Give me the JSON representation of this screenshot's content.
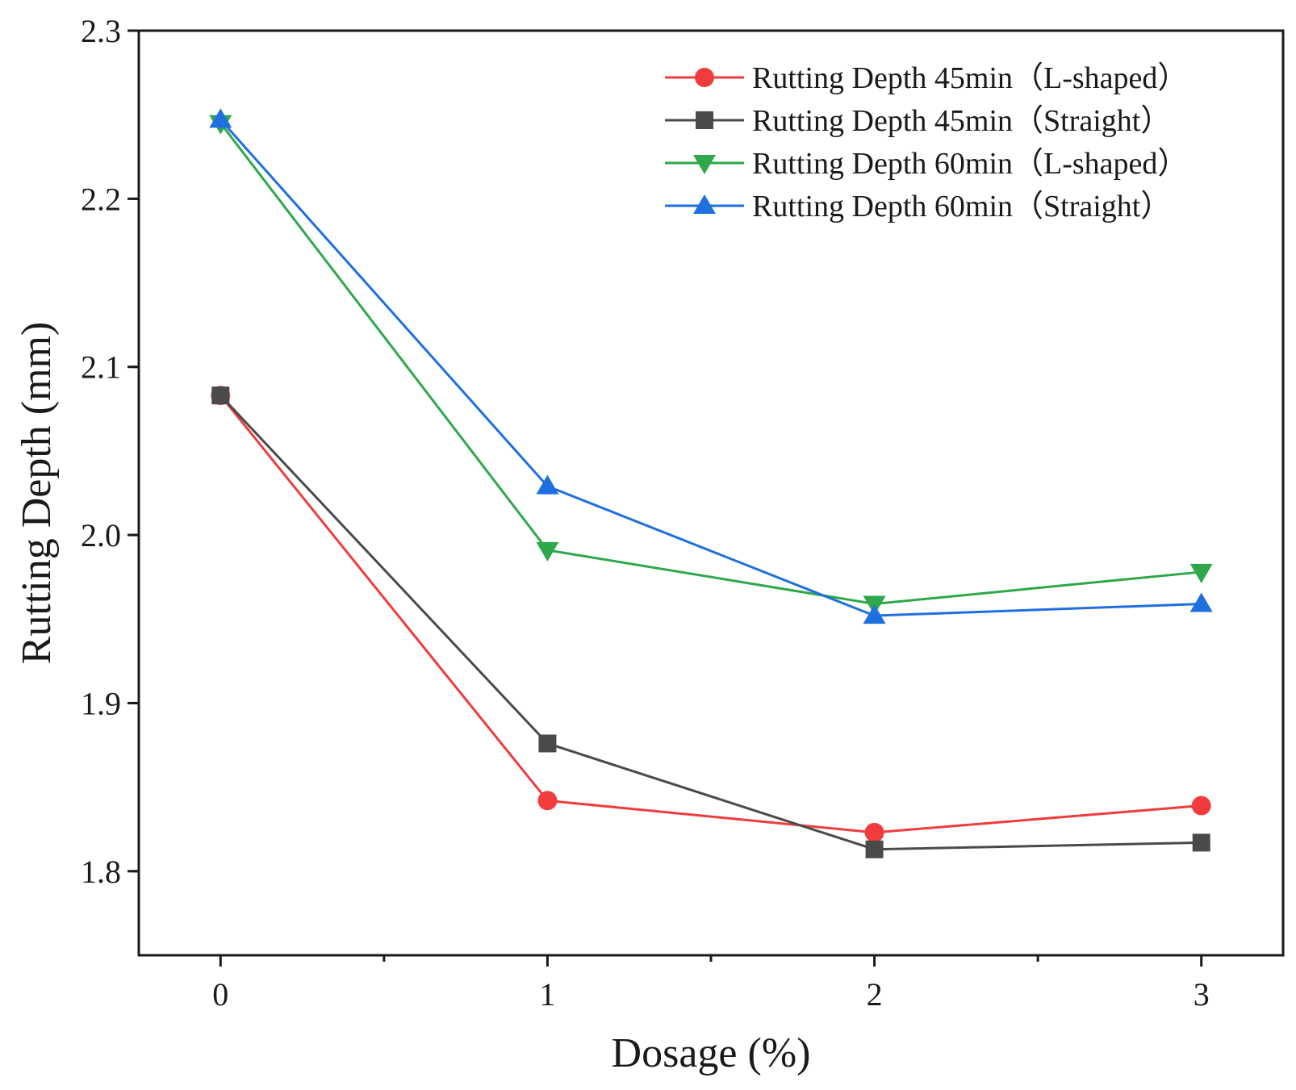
{
  "chart_data": {
    "type": "line",
    "title": "",
    "xlabel": "Dosage (%)",
    "ylabel": "Rutting Depth (mm)",
    "x": [
      0,
      1,
      2,
      3
    ],
    "x_ticks": [
      "0",
      "1",
      "2",
      "3"
    ],
    "xlim": [
      -0.25,
      3.25
    ],
    "ylim": [
      1.75,
      2.3
    ],
    "y_ticks": [
      "1.8",
      "1.9",
      "2.0",
      "2.1",
      "2.2",
      "2.3"
    ],
    "y_tick_values": [
      1.8,
      1.9,
      2.0,
      2.1,
      2.2,
      2.3
    ],
    "grid": false,
    "legend_position": "top-right",
    "series": [
      {
        "name": "Rutting Depth 45min（L-shaped）",
        "color": "#f03c3c",
        "marker": "circle",
        "values": [
          2.083,
          1.842,
          1.823,
          1.839
        ]
      },
      {
        "name": "Rutting Depth 45min（Straight）",
        "color": "#4a4a4a",
        "marker": "square",
        "values": [
          2.083,
          1.876,
          1.813,
          1.817
        ]
      },
      {
        "name": "Rutting Depth 60min（L-shaped）",
        "color": "#2ea84a",
        "marker": "triangle-down",
        "values": [
          2.245,
          1.991,
          1.959,
          1.978
        ]
      },
      {
        "name": "Rutting Depth 60min（Straight）",
        "color": "#1f6fe0",
        "marker": "triangle-up",
        "values": [
          2.247,
          2.029,
          1.952,
          1.959
        ]
      }
    ]
  }
}
